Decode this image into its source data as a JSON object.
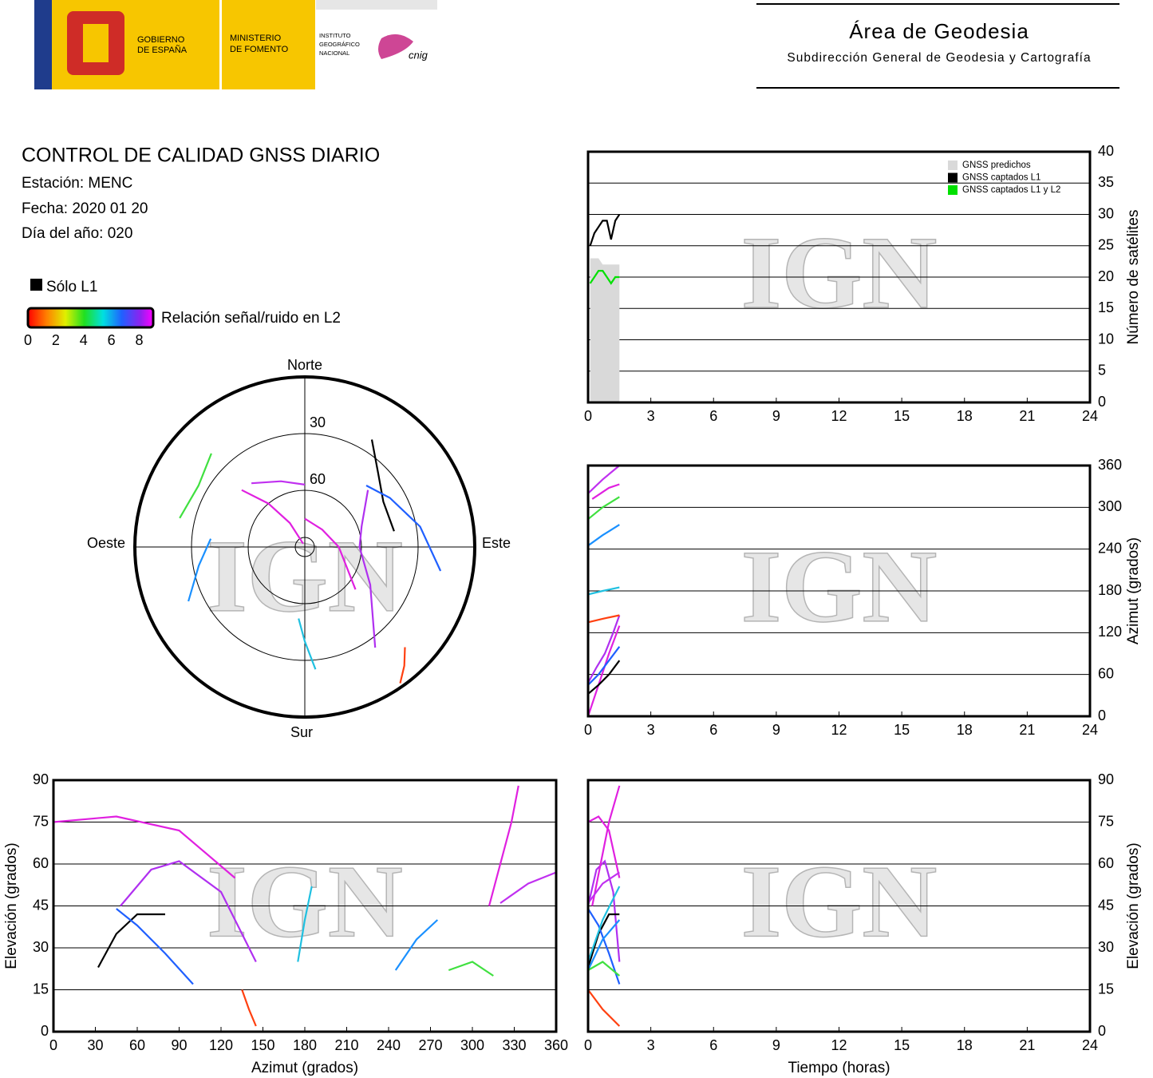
{
  "header": {
    "logo_gov": [
      "GOBIERNO",
      "DE ESPAÑA"
    ],
    "logo_min": [
      "MINISTERIO",
      "DE FOMENTO"
    ],
    "logo_ign": [
      "INSTITUTO",
      "GEOGRÁFICO",
      "NACIONAL"
    ],
    "logo_cnig": "cnig",
    "title": "Área de Geodesia",
    "subtitle": "Subdirección General de Geodesia y Cartografía"
  },
  "info": {
    "title": "CONTROL DE CALIDAD GNSS DIARIO",
    "station": "Estación: MENC",
    "date": "Fecha: 2020 01 20",
    "doy": "Día del año: 020",
    "l1_only": "Sólo L1",
    "snr_label": "Relación señal/ruido en L2",
    "snr_lim": [
      0,
      9
    ],
    "snr_ticks": [
      0,
      2,
      4,
      6,
      8
    ]
  },
  "watermark": "IGN",
  "chart_data": [
    {
      "type": "count",
      "ylabel": "Número de satélites",
      "xlim": [
        0,
        24
      ],
      "xticks": [
        0,
        3,
        6,
        9,
        12,
        15,
        18,
        21,
        24
      ],
      "ylim": [
        0,
        40
      ],
      "yticks": [
        0,
        5,
        10,
        15,
        20,
        25,
        30,
        35,
        40
      ],
      "grid": true,
      "legend": "upper right",
      "x": [
        0.1,
        0.3,
        0.5,
        0.7,
        0.9,
        1.1,
        1.3,
        1.5
      ],
      "series": [
        {
          "name": "GNSS predichos",
          "color": "#d9d9d9",
          "style": "area",
          "values": [
            23,
            23,
            23,
            22,
            22,
            22,
            22,
            22
          ]
        },
        {
          "name": "GNSS captados L1",
          "color": "#000000",
          "style": "line",
          "values": [
            25,
            27,
            28,
            29,
            29,
            26,
            29,
            30
          ]
        },
        {
          "name": "GNSS captados L1 y L2",
          "color": "#00e000",
          "style": "line",
          "values": [
            19,
            20,
            21,
            21,
            20,
            19,
            20,
            20
          ]
        }
      ]
    },
    {
      "type": "track",
      "ylabel": "Azimut (grados)",
      "xlim": [
        0,
        24
      ],
      "xticks": [
        0,
        3,
        6,
        9,
        12,
        15,
        18,
        21,
        24
      ],
      "ylim": [
        0,
        360
      ],
      "yticks": [
        0,
        60,
        120,
        180,
        240,
        300,
        360
      ],
      "grid": true,
      "series": [
        {
          "color": "#e020e0",
          "x": [
            0,
            0.5,
            1,
            1.5
          ],
          "values": [
            0,
            45,
            90,
            130
          ]
        },
        {
          "color": "#b030f0",
          "x": [
            0,
            0.4,
            0.8,
            1.2,
            1.5
          ],
          "values": [
            48,
            70,
            90,
            120,
            145
          ]
        },
        {
          "color": "#000000",
          "x": [
            0,
            0.5,
            1,
            1.5
          ],
          "values": [
            32,
            45,
            60,
            80
          ]
        },
        {
          "color": "#2060ff",
          "x": [
            0,
            0.5,
            1,
            1.5
          ],
          "values": [
            45,
            60,
            80,
            100
          ]
        },
        {
          "color": "#e020e0",
          "x": [
            0.2,
            0.6,
            1,
            1.5
          ],
          "values": [
            312,
            320,
            328,
            333
          ]
        },
        {
          "color": "#1a90ff",
          "x": [
            0,
            0.7,
            1.5
          ],
          "values": [
            245,
            260,
            275
          ]
        },
        {
          "color": "#40e040",
          "x": [
            0,
            0.7,
            1.5
          ],
          "values": [
            283,
            300,
            315
          ]
        },
        {
          "color": "#20c0e0",
          "x": [
            0,
            0.7,
            1.5
          ],
          "values": [
            175,
            180,
            185
          ]
        },
        {
          "color": "#ff4010",
          "x": [
            0,
            0.7,
            1.5
          ],
          "values": [
            135,
            140,
            145
          ]
        },
        {
          "color": "#c030f0",
          "x": [
            0,
            0.7,
            1.5
          ],
          "values": [
            320,
            340,
            360
          ]
        }
      ]
    },
    {
      "type": "track",
      "xlabel": "Azimut (grados)",
      "ylabel": "Elevación (grados)",
      "xlim": [
        0,
        360
      ],
      "xticks": [
        0,
        30,
        60,
        90,
        120,
        150,
        180,
        210,
        240,
        270,
        300,
        330,
        360
      ],
      "ylim": [
        0,
        90
      ],
      "yticks": [
        0,
        15,
        30,
        45,
        60,
        75,
        90
      ],
      "grid": true,
      "series": [
        {
          "color": "#e020e0",
          "x": [
            0,
            45,
            90,
            130
          ],
          "values": [
            75,
            77,
            72,
            55
          ]
        },
        {
          "color": "#b030f0",
          "x": [
            48,
            70,
            90,
            120,
            145
          ],
          "values": [
            45,
            58,
            61,
            50,
            25
          ]
        },
        {
          "color": "#000000",
          "x": [
            32,
            45,
            60,
            80
          ],
          "values": [
            23,
            35,
            42,
            42
          ]
        },
        {
          "color": "#2060ff",
          "x": [
            45,
            60,
            80,
            100
          ],
          "values": [
            44,
            38,
            28,
            17
          ]
        },
        {
          "color": "#e020e0",
          "x": [
            312,
            320,
            328,
            333
          ],
          "values": [
            45,
            60,
            75,
            88
          ]
        },
        {
          "color": "#1a90ff",
          "x": [
            245,
            260,
            275
          ],
          "values": [
            22,
            33,
            40
          ]
        },
        {
          "color": "#40e040",
          "x": [
            283,
            300,
            315
          ],
          "values": [
            22,
            25,
            20
          ]
        },
        {
          "color": "#20c0e0",
          "x": [
            175,
            180,
            185
          ],
          "values": [
            25,
            40,
            52
          ]
        },
        {
          "color": "#ff4010",
          "x": [
            135,
            140,
            145
          ],
          "values": [
            15,
            8,
            2
          ]
        },
        {
          "color": "#c030f0",
          "x": [
            320,
            340,
            360
          ],
          "values": [
            46,
            53,
            57
          ]
        }
      ]
    },
    {
      "type": "track",
      "xlabel": "Tiempo (horas)",
      "ylabel": "Elevación (grados)",
      "xlim": [
        0,
        24
      ],
      "xticks": [
        0,
        3,
        6,
        9,
        12,
        15,
        18,
        21,
        24
      ],
      "ylim": [
        0,
        90
      ],
      "yticks": [
        0,
        15,
        30,
        45,
        60,
        75,
        90
      ],
      "grid": true,
      "series": [
        {
          "color": "#e020e0",
          "x": [
            0,
            0.5,
            1,
            1.5
          ],
          "values": [
            75,
            77,
            72,
            55
          ]
        },
        {
          "color": "#b030f0",
          "x": [
            0,
            0.4,
            0.8,
            1.2,
            1.5
          ],
          "values": [
            45,
            58,
            61,
            50,
            25
          ]
        },
        {
          "color": "#000000",
          "x": [
            0,
            0.5,
            1,
            1.5
          ],
          "values": [
            23,
            35,
            42,
            42
          ]
        },
        {
          "color": "#2060ff",
          "x": [
            0,
            0.5,
            1,
            1.5
          ],
          "values": [
            44,
            38,
            28,
            17
          ]
        },
        {
          "color": "#e020e0",
          "x": [
            0.2,
            0.6,
            1,
            1.5
          ],
          "values": [
            45,
            60,
            75,
            88
          ]
        },
        {
          "color": "#1a90ff",
          "x": [
            0,
            0.7,
            1.5
          ],
          "values": [
            22,
            33,
            40
          ]
        },
        {
          "color": "#40e040",
          "x": [
            0,
            0.7,
            1.5
          ],
          "values": [
            22,
            25,
            20
          ]
        },
        {
          "color": "#20c0e0",
          "x": [
            0,
            0.7,
            1.5
          ],
          "values": [
            25,
            40,
            52
          ]
        },
        {
          "color": "#ff4010",
          "x": [
            0,
            0.7,
            1.5
          ],
          "values": [
            15,
            8,
            2
          ]
        },
        {
          "color": "#c030f0",
          "x": [
            0,
            0.7,
            1.5
          ],
          "values": [
            46,
            53,
            57
          ]
        }
      ]
    },
    {
      "type": "polar",
      "labels": {
        "north": "Norte",
        "south": "Sur",
        "east": "Este",
        "west": "Oeste"
      },
      "rlim": [
        90,
        0
      ],
      "rticks": [
        30,
        60
      ],
      "series": [
        {
          "color": "#e020e0",
          "x": [
            0,
            45,
            90,
            130
          ],
          "values": [
            75,
            77,
            72,
            55
          ]
        },
        {
          "color": "#b030f0",
          "x": [
            48,
            70,
            90,
            120,
            145
          ],
          "values": [
            45,
            58,
            61,
            50,
            25
          ]
        },
        {
          "color": "#000000",
          "x": [
            32,
            45,
            60,
            80
          ],
          "values": [
            23,
            35,
            42,
            42
          ]
        },
        {
          "color": "#2060ff",
          "x": [
            45,
            60,
            80,
            100
          ],
          "values": [
            44,
            38,
            28,
            17
          ]
        },
        {
          "color": "#e020e0",
          "x": [
            312,
            320,
            328,
            333
          ],
          "values": [
            45,
            60,
            75,
            88
          ]
        },
        {
          "color": "#1a90ff",
          "x": [
            245,
            260,
            275
          ],
          "values": [
            22,
            33,
            40
          ]
        },
        {
          "color": "#40e040",
          "x": [
            283,
            300,
            315
          ],
          "values": [
            22,
            25,
            20
          ]
        },
        {
          "color": "#20c0e0",
          "x": [
            175,
            180,
            185
          ],
          "values": [
            25,
            40,
            52
          ]
        },
        {
          "color": "#ff4010",
          "x": [
            135,
            140,
            145
          ],
          "values": [
            15,
            8,
            2
          ]
        },
        {
          "color": "#c030f0",
          "x": [
            320,
            340,
            360
          ],
          "values": [
            46,
            53,
            57
          ]
        }
      ]
    }
  ]
}
